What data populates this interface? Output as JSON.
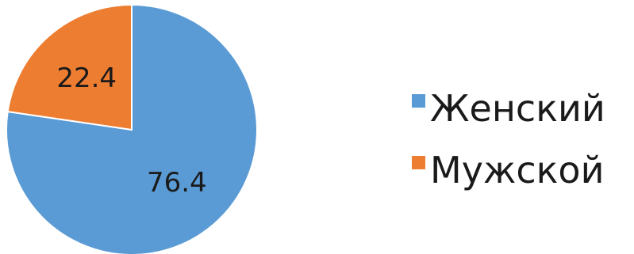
{
  "chart_data": {
    "type": "pie",
    "title": "",
    "categories": [
      "Женский",
      "Мужской"
    ],
    "values": [
      76.4,
      22.4
    ],
    "data_labels": [
      "76.4",
      "22.4"
    ],
    "colors": [
      "#5b9bd5",
      "#ed7d31"
    ],
    "start_angle_deg": 0,
    "direction": "clockwise",
    "legend": {
      "position": "right",
      "items": [
        "Женский",
        "Мужской"
      ]
    }
  }
}
